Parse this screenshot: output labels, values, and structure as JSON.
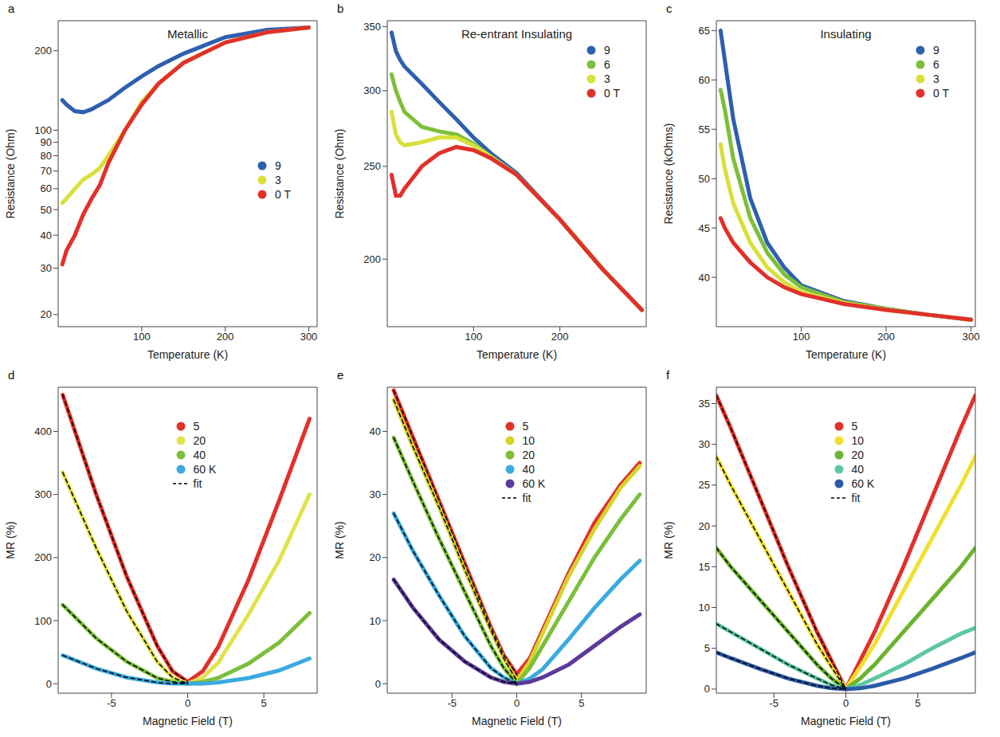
{
  "chart_data": [
    {
      "type": "line",
      "panel": "a",
      "title": "Metallic",
      "x_label": "Temperature (K)",
      "y_label": "Resistance (Ohm)",
      "log": "y",
      "legend": "right",
      "xlim": [
        0,
        310
      ],
      "xticks": [
        100,
        200,
        300
      ],
      "ylim": [
        18,
        260
      ],
      "yticks": [
        20,
        30,
        40,
        50,
        60,
        70,
        80,
        90,
        100,
        200
      ],
      "x": [
        5,
        10,
        20,
        30,
        40,
        50,
        60,
        80,
        100,
        120,
        150,
        200,
        250,
        300
      ],
      "series": [
        {
          "name": "9",
          "color": "#2d5fb0",
          "values": [
            130,
            125,
            118,
            117,
            120,
            125,
            130,
            145,
            160,
            175,
            195,
            225,
            240,
            245
          ]
        },
        {
          "name": "3",
          "color": "#d8e03a",
          "values": [
            53,
            55,
            60,
            65,
            68,
            72,
            80,
            100,
            128,
            150,
            180,
            215,
            235,
            245
          ]
        },
        {
          "name": "0 T",
          "color": "#e2302a",
          "values": [
            31,
            35,
            40,
            48,
            55,
            62,
            75,
            100,
            125,
            150,
            180,
            215,
            235,
            245
          ]
        }
      ]
    },
    {
      "type": "line",
      "panel": "b",
      "title": "Re-entrant Insulating",
      "x_label": "Temperature (K)",
      "y_label": "Resistance (Ohm)",
      "log": "y",
      "legend": "upper right",
      "xlim": [
        0,
        300
      ],
      "xticks": [
        100,
        200
      ],
      "ylim": [
        170,
        355
      ],
      "yticks": [
        200,
        250,
        300,
        350
      ],
      "x": [
        5,
        10,
        15,
        20,
        40,
        60,
        80,
        100,
        120,
        150,
        200,
        250,
        295
      ],
      "series": [
        {
          "name": "9",
          "color": "#2d5fb0",
          "values": [
            345,
            330,
            323,
            318,
            305,
            292,
            280,
            268,
            258,
            246,
            220,
            195,
            177
          ]
        },
        {
          "name": "6",
          "color": "#7cbf3a",
          "values": [
            312,
            300,
            292,
            285,
            275,
            272,
            270,
            264,
            256,
            245,
            220,
            195,
            177
          ]
        },
        {
          "name": "3",
          "color": "#d8e03a",
          "values": [
            285,
            270,
            265,
            263,
            265,
            268,
            268,
            263,
            256,
            245,
            220,
            195,
            177
          ]
        },
        {
          "name": "0 T",
          "color": "#e2302a",
          "values": [
            245,
            233,
            233,
            237,
            250,
            258,
            262,
            260,
            255,
            245,
            220,
            195,
            177
          ]
        }
      ]
    },
    {
      "type": "line",
      "panel": "c",
      "title": "Insulating",
      "x_label": "Temperature (K)",
      "y_label": "Resistance (kOhms)",
      "legend": "upper right",
      "xlim": [
        0,
        305
      ],
      "xticks": [
        100,
        200,
        300
      ],
      "ylim": [
        35,
        66
      ],
      "yticks": [
        40,
        45,
        50,
        55,
        60,
        65
      ],
      "x": [
        5,
        10,
        20,
        40,
        60,
        80,
        100,
        150,
        200,
        250,
        300
      ],
      "series": [
        {
          "name": "9",
          "color": "#2d5fb0",
          "values": [
            65,
            62,
            56,
            48,
            43.5,
            41,
            39.2,
            37.6,
            36.8,
            36.2,
            35.7
          ]
        },
        {
          "name": "6",
          "color": "#7cbf3a",
          "values": [
            59,
            57,
            52,
            46,
            42.5,
            40.3,
            39,
            37.5,
            36.8,
            36.2,
            35.7
          ]
        },
        {
          "name": "3",
          "color": "#d8e03a",
          "values": [
            53.5,
            51,
            47.5,
            43.5,
            41,
            39.5,
            38.5,
            37.4,
            36.7,
            36.2,
            35.7
          ]
        },
        {
          "name": "0 T",
          "color": "#e2302a",
          "values": [
            46,
            45,
            43.5,
            41.5,
            40,
            39,
            38.3,
            37.3,
            36.7,
            36.2,
            35.7
          ]
        }
      ]
    },
    {
      "type": "line",
      "panel": "d",
      "x_label": "Magnetic Field (T)",
      "y_label": "MR (%)",
      "legend": "upper center",
      "xlim": [
        -8.5,
        8.5
      ],
      "xticks": [
        -5,
        0,
        5
      ],
      "ylim": [
        -15,
        470
      ],
      "yticks": [
        0,
        100,
        200,
        300,
        400
      ],
      "x": [
        -8.2,
        -6,
        -4,
        -2,
        -1,
        0,
        1,
        2,
        4,
        6,
        8
      ],
      "series": [
        {
          "name": "5",
          "color": "#e2302a",
          "values": [
            458,
            300,
            170,
            60,
            20,
            3,
            20,
            58,
            165,
            290,
            420
          ]
        },
        {
          "name": "20",
          "color": "#e2e24a",
          "values": [
            335,
            215,
            115,
            35,
            10,
            0,
            10,
            33,
            110,
            195,
            300
          ]
        },
        {
          "name": "40",
          "color": "#7cbf3a",
          "values": [
            125,
            72,
            35,
            9,
            3,
            0,
            3,
            9,
            32,
            65,
            112
          ]
        },
        {
          "name": "60 K",
          "color": "#3aaae0",
          "values": [
            45,
            24,
            10,
            2,
            0,
            0,
            0,
            2,
            9,
            21,
            40
          ]
        },
        {
          "name": "fit",
          "color": "#000000",
          "line_style": "dashed",
          "values": [
            458,
            300,
            170,
            60,
            20,
            3,
            null,
            null,
            null,
            null,
            null
          ]
        },
        {
          "name": "fit",
          "color": "#000000",
          "line_style": "dashed",
          "values": [
            335,
            215,
            115,
            35,
            10,
            0,
            null,
            null,
            null,
            null,
            null
          ]
        },
        {
          "name": "fit",
          "color": "#000000",
          "line_style": "dashed",
          "values": [
            125,
            72,
            35,
            9,
            3,
            0,
            null,
            null,
            null,
            null,
            null
          ]
        },
        {
          "name": "fit",
          "color": "#000000",
          "line_style": "dashed",
          "values": [
            45,
            24,
            10,
            2,
            0,
            0,
            null,
            null,
            null,
            null,
            null
          ]
        }
      ]
    },
    {
      "type": "line",
      "panel": "e",
      "x_label": "Magnetic Field (T)",
      "y_label": "MR (%)",
      "legend": "upper center",
      "xlim": [
        -10,
        10
      ],
      "xticks": [
        -5,
        0,
        5
      ],
      "ylim": [
        -1.5,
        47
      ],
      "yticks": [
        0,
        10,
        20,
        30,
        40
      ],
      "x": [
        -9.5,
        -8,
        -6,
        -4,
        -2,
        -1,
        0,
        1,
        2,
        4,
        6,
        8,
        9.5
      ],
      "series": [
        {
          "name": "5",
          "color": "#e2302a",
          "values": [
            46.5,
            39,
            29,
            19,
            9,
            4.5,
            1.5,
            4,
            8.5,
            17.5,
            25.5,
            31.5,
            35
          ]
        },
        {
          "name": "10",
          "color": "#d4d42a",
          "values": [
            45,
            37.5,
            28,
            18,
            8.5,
            4,
            0.5,
            3.5,
            8,
            17,
            24.5,
            31,
            34.5
          ]
        },
        {
          "name": "20",
          "color": "#7cbf3a",
          "values": [
            39,
            32,
            23,
            14.5,
            6,
            2.5,
            0,
            2.5,
            6,
            13,
            20,
            26,
            30
          ]
        },
        {
          "name": "40",
          "color": "#3aaae0",
          "values": [
            27,
            21,
            14,
            7.5,
            2.5,
            1,
            0,
            0.8,
            2.3,
            7,
            12,
            16.5,
            19.5
          ]
        },
        {
          "name": "60 K",
          "color": "#5b3a9a",
          "values": [
            16.5,
            12,
            7,
            3.5,
            1,
            0.3,
            0,
            0.3,
            1,
            3,
            6,
            9,
            11
          ]
        },
        {
          "name": "fit",
          "color": "#000000",
          "line_style": "dashed",
          "values": [
            46.5,
            39,
            29,
            19,
            9,
            4.5,
            1.5,
            null,
            null,
            null,
            null,
            null,
            null
          ]
        },
        {
          "name": "fit",
          "color": "#000000",
          "line_style": "dashed",
          "values": [
            45,
            37.5,
            28,
            18,
            8.5,
            4,
            0.5,
            null,
            null,
            null,
            null,
            null,
            null
          ]
        },
        {
          "name": "fit",
          "color": "#000000",
          "line_style": "dashed",
          "values": [
            39,
            32,
            23,
            14.5,
            6,
            2.5,
            0,
            null,
            null,
            null,
            null,
            null,
            null
          ]
        },
        {
          "name": "fit",
          "color": "#000000",
          "line_style": "dashed",
          "values": [
            27,
            21,
            14,
            7.5,
            2.5,
            1,
            0,
            null,
            null,
            null,
            null,
            null,
            null
          ]
        },
        {
          "name": "fit",
          "color": "#000000",
          "line_style": "dashed",
          "values": [
            16.5,
            12,
            7,
            3.5,
            1,
            0.3,
            0,
            null,
            null,
            null,
            null,
            null,
            null
          ]
        }
      ]
    },
    {
      "type": "line",
      "panel": "f",
      "x_label": "Magnetic Field (T)",
      "y_label": "MR (%)",
      "legend": "upper center",
      "xlim": [
        -9,
        9
      ],
      "xticks": [
        -5,
        0,
        5
      ],
      "ylim": [
        -0.5,
        37
      ],
      "yticks": [
        0,
        5,
        10,
        15,
        20,
        25,
        30,
        35
      ],
      "x": [
        -9,
        -8,
        -6,
        -4,
        -2,
        -1,
        0,
        1,
        2,
        4,
        6,
        8,
        9
      ],
      "series": [
        {
          "name": "5",
          "color": "#e2302a",
          "values": [
            36,
            32,
            23.5,
            15,
            7,
            3.5,
            0,
            3.5,
            7,
            15,
            23.5,
            32,
            36
          ]
        },
        {
          "name": "10",
          "color": "#f0e030",
          "values": [
            28.5,
            25,
            18.5,
            12,
            5.5,
            2.7,
            0,
            2.7,
            5.5,
            12,
            18.5,
            25,
            28.5
          ]
        },
        {
          "name": "20",
          "color": "#6ab42e",
          "values": [
            17.3,
            15,
            11,
            7,
            3,
            1.3,
            0,
            1.3,
            3,
            7,
            11,
            15,
            17.3
          ]
        },
        {
          "name": "40",
          "color": "#5cc8a0",
          "values": [
            8,
            7,
            5,
            3,
            1.3,
            0.5,
            0,
            0.5,
            1.3,
            3,
            5,
            6.8,
            7.5
          ]
        },
        {
          "name": "60 K",
          "color": "#2a5aa8",
          "values": [
            4.5,
            3.8,
            2.5,
            1.3,
            0.4,
            0.1,
            0,
            0.1,
            0.4,
            1.3,
            2.5,
            3.8,
            4.5
          ]
        },
        {
          "name": "fit",
          "color": "#000000",
          "line_style": "dashed",
          "values": [
            36,
            32,
            23.5,
            15,
            7,
            3.5,
            0,
            null,
            null,
            null,
            null,
            null,
            null
          ]
        },
        {
          "name": "fit",
          "color": "#000000",
          "line_style": "dashed",
          "values": [
            28.5,
            25,
            18.5,
            12,
            5.5,
            2.7,
            0,
            null,
            null,
            null,
            null,
            null,
            null
          ]
        },
        {
          "name": "fit",
          "color": "#000000",
          "line_style": "dashed",
          "values": [
            17.3,
            15,
            11,
            7,
            3,
            1.3,
            0,
            null,
            null,
            null,
            null,
            null,
            null
          ]
        },
        {
          "name": "fit",
          "color": "#000000",
          "line_style": "dashed",
          "values": [
            8,
            7,
            5,
            3,
            1.3,
            0.5,
            0,
            null,
            null,
            null,
            null,
            null,
            null
          ]
        },
        {
          "name": "fit",
          "color": "#000000",
          "line_style": "dashed",
          "values": [
            4.5,
            3.8,
            2.5,
            1.3,
            0.4,
            0.1,
            0,
            null,
            null,
            null,
            null,
            null,
            null
          ]
        }
      ]
    }
  ]
}
